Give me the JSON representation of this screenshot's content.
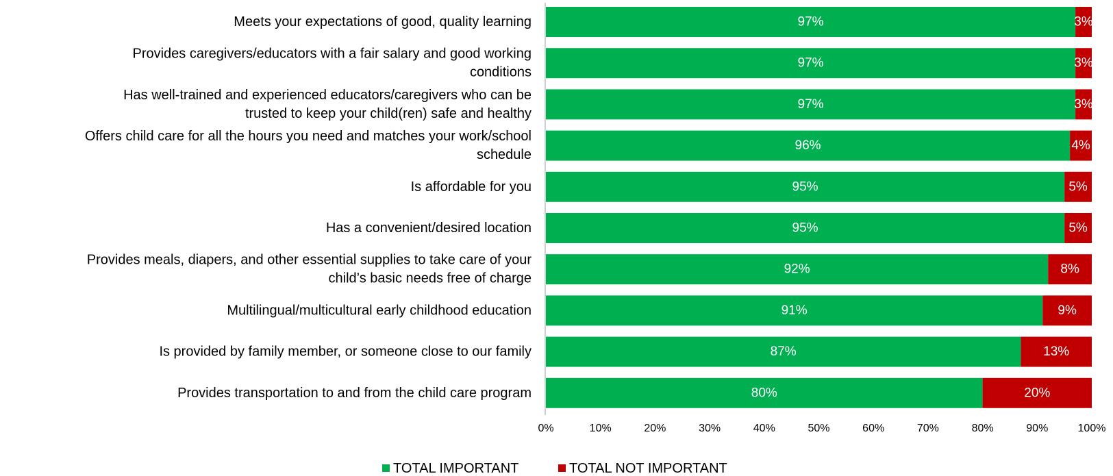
{
  "chart_data": {
    "type": "bar",
    "orientation": "horizontal",
    "stacked": true,
    "percent": true,
    "categories": [
      "Meets your expectations of good, quality learning",
      "Provides caregivers/educators with a fair salary and good working conditions",
      "Has well-trained and experienced educators/caregivers who can be trusted to keep your child(ren) safe and healthy",
      "Offers child care for all the hours you need and matches your work/school schedule",
      "Is affordable for you",
      "Has a convenient/desired location",
      "Provides meals, diapers, and other essential supplies to take care of your child’s basic needs free of charge",
      "Multilingual/multicultural early childhood education",
      "Is provided by family member, or someone close to our family",
      "Provides transportation to and from the child care program"
    ],
    "category_lines": [
      [
        "Meets your expectations of good, quality learning"
      ],
      [
        "Provides caregivers/educators with a fair salary and good working",
        "conditions"
      ],
      [
        "Has well-trained and experienced educators/caregivers who can be",
        "trusted to keep your child(ren) safe and healthy"
      ],
      [
        "Offers child care for all the hours you need and matches your work/school",
        "schedule"
      ],
      [
        "Is affordable for you"
      ],
      [
        "Has a convenient/desired location"
      ],
      [
        "Provides meals, diapers, and other essential supplies to take care of your",
        "child’s basic needs free of charge"
      ],
      [
        "Multilingual/multicultural early childhood education"
      ],
      [
        "Is provided by family member, or someone close to our family"
      ],
      [
        "Provides transportation to and from the child care program"
      ]
    ],
    "series": [
      {
        "name": "TOTAL IMPORTANT",
        "color": "#00b050",
        "values": [
          97,
          97,
          97,
          96,
          95,
          95,
          92,
          91,
          87,
          80
        ],
        "labels": [
          "97%",
          "97%",
          "97%",
          "96%",
          "95%",
          "95%",
          "92%",
          "91%",
          "87%",
          "80%"
        ]
      },
      {
        "name": "TOTAL NOT IMPORTANT",
        "color": "#c00000",
        "values": [
          3,
          3,
          3,
          4,
          5,
          5,
          8,
          9,
          13,
          20
        ],
        "labels": [
          "3%",
          "3%",
          "3%",
          "4%",
          "5%",
          "5%",
          "8%",
          "9%",
          "13%",
          "20%"
        ]
      }
    ],
    "xlim": [
      0,
      100
    ],
    "x_ticks": [
      "0%",
      "10%",
      "20%",
      "30%",
      "40%",
      "50%",
      "60%",
      "70%",
      "80%",
      "90%",
      "100%"
    ],
    "grid": false,
    "legend_position": "bottom-center"
  }
}
